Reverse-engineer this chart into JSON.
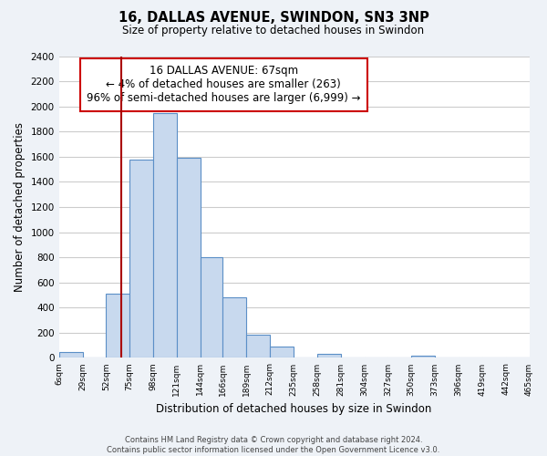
{
  "title": "16, DALLAS AVENUE, SWINDON, SN3 3NP",
  "subtitle": "Size of property relative to detached houses in Swindon",
  "xlabel": "Distribution of detached houses by size in Swindon",
  "ylabel": "Number of detached properties",
  "bar_color": "#c8d9ee",
  "bar_edge_color": "#5b8fc7",
  "bin_edges": [
    6,
    29,
    52,
    75,
    98,
    121,
    144,
    166,
    189,
    212,
    235,
    258,
    281,
    304,
    327,
    350,
    373,
    396,
    419,
    442,
    465
  ],
  "bar_heights": [
    50,
    0,
    510,
    1580,
    1950,
    1590,
    800,
    480,
    185,
    90,
    0,
    35,
    0,
    0,
    0,
    20,
    0,
    0,
    0,
    0
  ],
  "tick_labels": [
    "6sqm",
    "29sqm",
    "52sqm",
    "75sqm",
    "98sqm",
    "121sqm",
    "144sqm",
    "166sqm",
    "189sqm",
    "212sqm",
    "235sqm",
    "258sqm",
    "281sqm",
    "304sqm",
    "327sqm",
    "350sqm",
    "373sqm",
    "396sqm",
    "419sqm",
    "442sqm",
    "465sqm"
  ],
  "ylim": [
    0,
    2400
  ],
  "yticks": [
    0,
    200,
    400,
    600,
    800,
    1000,
    1200,
    1400,
    1600,
    1800,
    2000,
    2200,
    2400
  ],
  "property_line_x": 67,
  "annotation_title": "16 DALLAS AVENUE: 67sqm",
  "annotation_line1": "← 4% of detached houses are smaller (263)",
  "annotation_line2": "96% of semi-detached houses are larger (6,999) →",
  "annotation_box_color": "#ffffff",
  "annotation_box_edge_color": "#cc0000",
  "property_line_color": "#aa0000",
  "footer_line1": "Contains HM Land Registry data © Crown copyright and database right 2024.",
  "footer_line2": "Contains public sector information licensed under the Open Government Licence v3.0.",
  "background_color": "#eef2f7",
  "plot_background_color": "#ffffff",
  "grid_color": "#cccccc"
}
